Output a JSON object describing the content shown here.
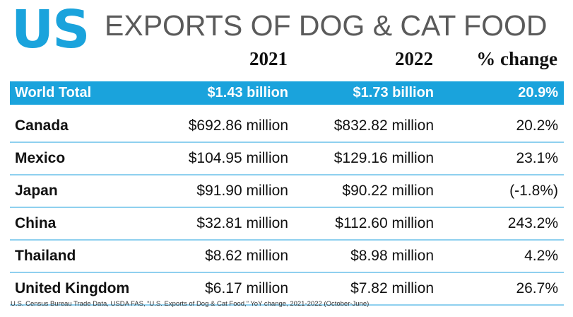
{
  "chart_data": {
    "type": "table",
    "title_prefix": "US",
    "title": "EXPORTS OF DOG & CAT FOOD",
    "columns": [
      "2021",
      "2022",
      "% change"
    ],
    "rows": [
      {
        "label": "World Total",
        "v2021": "$1.43 billion",
        "v2022": "$1.73 billion",
        "change": "20.9%"
      },
      {
        "label": "Canada",
        "v2021": "$692.86 million",
        "v2022": "$832.82 million",
        "change": "20.2%"
      },
      {
        "label": "Mexico",
        "v2021": "$104.95 million",
        "v2022": "$129.16 million",
        "change": "23.1%"
      },
      {
        "label": "Japan",
        "v2021": "$91.90 million",
        "v2022": "$90.22 million",
        "change": "(-1.8%)"
      },
      {
        "label": "China",
        "v2021": "$32.81 million",
        "v2022": "$112.60 million",
        "change": "243.2%"
      },
      {
        "label": "Thailand",
        "v2021": "$8.62 million",
        "v2022": "$8.98 million",
        "change": "4.2%"
      },
      {
        "label": "United Kingdom",
        "v2021": "$6.17 million",
        "v2022": "$7.82 million",
        "change": "26.7%"
      }
    ],
    "source": "U.S. Census Bureau Trade Data, USDA FAS, “U.S. Exports of Dog & Cat Food,” YoY change, 2021-2022 (October-June)"
  },
  "colors": {
    "accent": "#1aa3dc",
    "title": "#5a5a5a",
    "divider": "#8fd0ef"
  }
}
